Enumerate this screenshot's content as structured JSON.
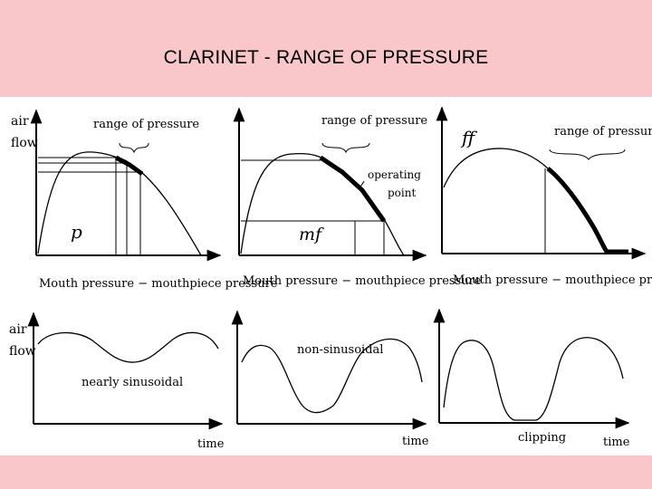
{
  "title": "CLARINET -  RANGE OF PRESSURE",
  "labels": {
    "air": "air",
    "flow": "flow",
    "range_of_pressure": "range of pressure",
    "operating": "operating",
    "point": "point",
    "x_axis": "Mouth pressure − mouthpiece pressure",
    "time": "time",
    "nearly_sinusoidal": "nearly sinusoidal",
    "non_sinusoidal": "non-sinusoidal",
    "clipping": "clipping"
  },
  "dynamics": {
    "p": "p",
    "mf": "mf",
    "ff": "ff"
  }
}
